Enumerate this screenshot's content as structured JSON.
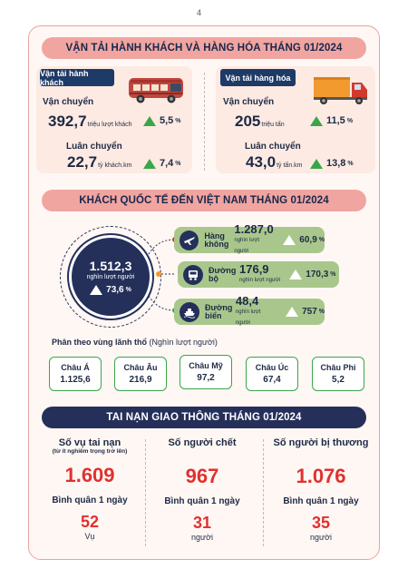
{
  "page_number": "4",
  "transport": {
    "title": "VẬN TẢI HÀNH KHÁCH VÀ HÀNG HÓA THÁNG 01/2024",
    "passenger": {
      "tab": "Vận tải hành khách",
      "carried_label": "Vận chuyển",
      "carried_value": "392,7",
      "carried_unit": "triệu lượt khách",
      "carried_pct": "5,5",
      "rotation_label": "Luân chuyển",
      "rotation_value": "22,7",
      "rotation_unit": "tỷ khách.km",
      "rotation_pct": "7,4"
    },
    "cargo": {
      "tab": "Vận tải hàng hóa",
      "carried_label": "Vận chuyển",
      "carried_value": "205",
      "carried_unit": "triệu tấn",
      "carried_pct": "11,5",
      "rotation_label": "Luân chuyển",
      "rotation_value": "43,0",
      "rotation_unit": "tỷ tấn.km",
      "rotation_pct": "13,8"
    },
    "percent_sign": "%"
  },
  "visitors": {
    "title": "KHÁCH QUỐC TẾ ĐẾN VIỆT NAM THÁNG 01/2024",
    "total_value": "1.512,3",
    "total_unit": "nghìn lượt người",
    "total_pct": "73,6",
    "modes": [
      {
        "name": "Hàng không",
        "value": "1.287,0",
        "unit": "nghìn lượt người",
        "pct": "60,9",
        "icon": "plane-icon"
      },
      {
        "name": "Đường bộ",
        "value": "176,9",
        "unit": "nghìn lượt người",
        "pct": "170,3",
        "icon": "bus-icon"
      },
      {
        "name": "Đường biển",
        "value": "48,4",
        "unit": "nghìn lượt người",
        "pct": "757",
        "icon": "ship-icon"
      }
    ],
    "regions_label": "Phân theo vùng lãnh thổ",
    "regions_unit": "(Nghìn lượt người)",
    "regions": [
      {
        "name": "Châu Á",
        "value": "1.125,6"
      },
      {
        "name": "Châu Âu",
        "value": "216,9"
      },
      {
        "name": "Châu Mỹ",
        "value": "97,2"
      },
      {
        "name": "Châu Úc",
        "value": "67,4"
      },
      {
        "name": "Châu Phi",
        "value": "5,2"
      }
    ]
  },
  "accidents": {
    "title": "TAI NẠN GIAO THÔNG THÁNG 01/2024",
    "cols": [
      {
        "title": "Số vụ tai nạn",
        "sub": "(từ ít nghiêm trọng trở lên)",
        "value": "1.609",
        "avg_label": "Bình quân 1 ngày",
        "avg_value": "52",
        "avg_unit": "Vụ"
      },
      {
        "title": "Số người chết",
        "sub": "",
        "value": "967",
        "avg_label": "Bình quân 1 ngày",
        "avg_value": "31",
        "avg_unit": "người"
      },
      {
        "title": "Số người bị thương",
        "sub": "",
        "value": "1.076",
        "avg_label": "Bình quân 1 ngày",
        "avg_value": "35",
        "avg_unit": "người"
      }
    ]
  },
  "colors": {
    "banner_pink": "#f1a5a0",
    "navy": "#24305a",
    "green_arrow": "#3aa64a",
    "accent_red": "#e0312f",
    "pill_green": "#a9c78c"
  }
}
